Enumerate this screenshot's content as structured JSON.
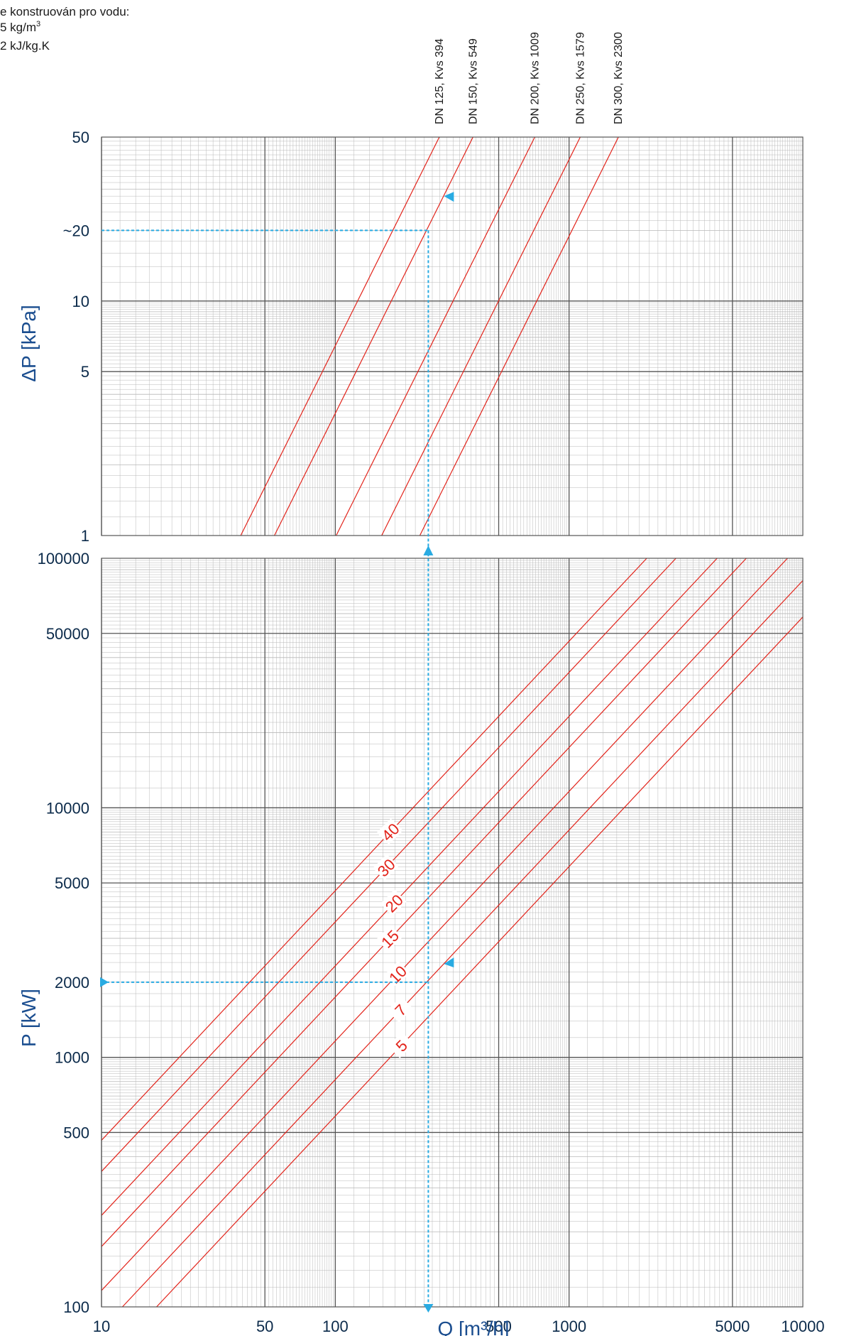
{
  "notes": {
    "line1": "e konstruován pro vodu:",
    "line2": "5 kg/m",
    "line2_sup": "3",
    "line3": "2 kJ/kg.K"
  },
  "chart_data": [
    {
      "type": "line",
      "panel": "pressure-drop",
      "ylabel": "ΔP [kPa]",
      "xscale": "log",
      "yscale": "log",
      "xlim": [
        10,
        10000
      ],
      "ylim": [
        1,
        50
      ],
      "grid": true,
      "ytick_labels": [
        {
          "v": 50,
          "t": "50"
        },
        {
          "v": 20,
          "t": "~20",
          "highlight": true
        },
        {
          "v": 10,
          "t": "10"
        },
        {
          "v": 5,
          "t": "5"
        },
        {
          "v": 1,
          "t": "1"
        }
      ],
      "series": [
        {
          "name": "DN 125, Kvs 394",
          "kvs": 394,
          "color": "#e2231a"
        },
        {
          "name": "DN 150, Kvs 549",
          "kvs": 549,
          "color": "#e2231a",
          "label_color": "#29abe2",
          "highlight": true
        },
        {
          "name": "DN 200, Kvs 1009",
          "kvs": 1009,
          "color": "#e2231a"
        },
        {
          "name": "DN 250, Kvs 1579",
          "kvs": 1579,
          "color": "#e2231a"
        },
        {
          "name": "DN 300, Kvs 2300",
          "kvs": 2300,
          "color": "#e2231a"
        }
      ],
      "example": {
        "Q": 250,
        "dP": 20
      }
    },
    {
      "type": "line",
      "panel": "power",
      "ylabel": "P [kW]",
      "xlabel": "Q [m³/h]",
      "xscale": "log",
      "yscale": "log",
      "xlim": [
        10,
        10000
      ],
      "ylim": [
        100,
        100000
      ],
      "grid": true,
      "ytick_labels": [
        {
          "v": 100000,
          "t": "100000"
        },
        {
          "v": 50000,
          "t": "50000"
        },
        {
          "v": 10000,
          "t": "10000"
        },
        {
          "v": 5000,
          "t": "5000"
        },
        {
          "v": 2000,
          "t": "2000",
          "highlight": true
        },
        {
          "v": 1000,
          "t": "1000"
        },
        {
          "v": 500,
          "t": "500"
        },
        {
          "v": 100,
          "t": "100"
        }
      ],
      "xtick_labels": [
        {
          "v": 10,
          "t": "10"
        },
        {
          "v": 50,
          "t": "50"
        },
        {
          "v": 100,
          "t": "100"
        },
        {
          "v": 500,
          "t": "500"
        },
        {
          "v": 1000,
          "t": "1000"
        },
        {
          "v": 5000,
          "t": "5000"
        },
        {
          "v": 10000,
          "t": "10000"
        }
      ],
      "series": [
        {
          "name": "40",
          "dT": 40,
          "color": "#e2231a"
        },
        {
          "name": "30",
          "dT": 30,
          "color": "#e2231a"
        },
        {
          "name": "20",
          "dT": 20,
          "color": "#e2231a"
        },
        {
          "name": "15",
          "dT": 15,
          "color": "#e2231a"
        },
        {
          "name": "10",
          "dT": 10,
          "color": "#e2231a"
        },
        {
          "name": "7",
          "dT": 7,
          "color": "#e2231a"
        },
        {
          "name": "5",
          "dT": 5,
          "color": "#e2231a"
        }
      ],
      "example": {
        "Q": 250,
        "P": 2000
      }
    }
  ],
  "colors": {
    "grid_major": "#555555",
    "grid_minor": "#b8b8b8",
    "curve": "#e2231a",
    "highlight": "#29abe2",
    "axis_text": "#1a4d8f",
    "tick_text": "#0b2a4a"
  }
}
